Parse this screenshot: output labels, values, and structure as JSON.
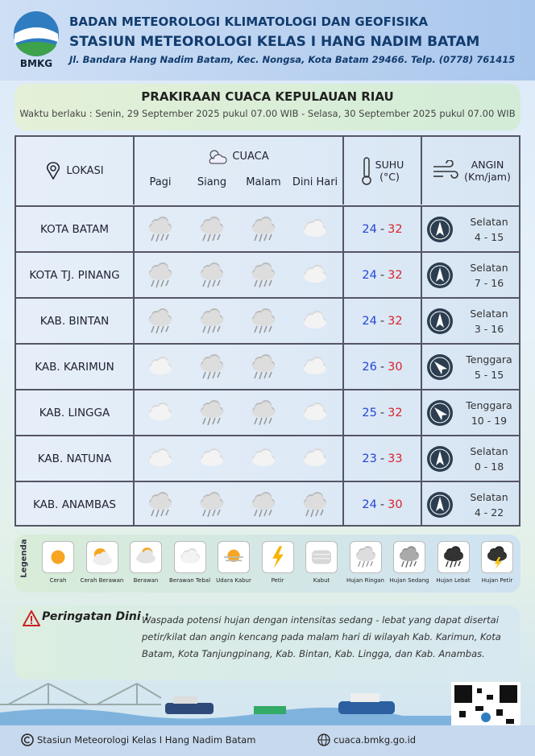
{
  "header": {
    "logo_text": "BMKG",
    "agency": "BADAN METEOROLOGI KLIMATOLOGI DAN GEOFISIKA",
    "station": "STASIUN METEOROLOGI KELAS I HANG NADIM BATAM",
    "address": "Jl. Bandara Hang Nadim Batam, Kec. Nongsa, Kota Batam 29466. Telp. (0778) 761415"
  },
  "title": "PRAKIRAAN CUACA KEPULAUAN RIAU",
  "validity": "Waktu berlaku : Senin, 29 September 2025 pukul 07.00 WIB - Selasa, 30 September 2025 pukul 07.00 WIB",
  "table": {
    "headers": {
      "location": "LOKASI",
      "weather": "CUACA",
      "periods": [
        "Pagi",
        "Siang",
        "Malam",
        "Dini Hari"
      ],
      "temperature": "SUHU",
      "temperature_unit": "(°C)",
      "wind": "ANGIN",
      "wind_unit": "(Km/jam)"
    },
    "temperature_separator": "-",
    "rows": [
      {
        "location": "KOTA BATAM",
        "weather": [
          "Hujan Ringan",
          "Hujan Ringan",
          "Hujan Ringan",
          "Berawan Tebal"
        ],
        "temp_min": 24,
        "temp_max": 32,
        "wind_direction": "Selatan",
        "wind_speed": "4 - 15"
      },
      {
        "location": "KOTA TJ. PINANG",
        "weather": [
          "Hujan Ringan",
          "Hujan Ringan",
          "Hujan Ringan",
          "Berawan Tebal"
        ],
        "temp_min": 24,
        "temp_max": 32,
        "wind_direction": "Selatan",
        "wind_speed": "7 - 16"
      },
      {
        "location": "KAB. BINTAN",
        "weather": [
          "Hujan Ringan",
          "Hujan Ringan",
          "Hujan Ringan",
          "Berawan Tebal"
        ],
        "temp_min": 24,
        "temp_max": 32,
        "wind_direction": "Selatan",
        "wind_speed": "3 - 16"
      },
      {
        "location": "KAB. KARIMUN",
        "weather": [
          "Berawan Tebal",
          "Hujan Ringan",
          "Hujan Ringan",
          "Berawan Tebal"
        ],
        "temp_min": 26,
        "temp_max": 30,
        "wind_direction": "Tenggara",
        "wind_speed": "5 - 15"
      },
      {
        "location": "KAB. LINGGA",
        "weather": [
          "Berawan Tebal",
          "Hujan Ringan",
          "Hujan Ringan",
          "Berawan Tebal"
        ],
        "temp_min": 25,
        "temp_max": 32,
        "wind_direction": "Tenggara",
        "wind_speed": "10 - 19"
      },
      {
        "location": "KAB. NATUNA",
        "weather": [
          "Berawan Tebal",
          "Berawan Tebal",
          "Berawan Tebal",
          "Berawan Tebal"
        ],
        "temp_min": 23,
        "temp_max": 33,
        "wind_direction": "Selatan",
        "wind_speed": "0 - 18"
      },
      {
        "location": "KAB. ANAMBAS",
        "weather": [
          "Hujan Ringan",
          "Hujan Ringan",
          "Hujan Ringan",
          "Hujan Ringan"
        ],
        "temp_min": 24,
        "temp_max": 30,
        "wind_direction": "Selatan",
        "wind_speed": "4 - 22"
      }
    ]
  },
  "legend": {
    "title": "Legenda",
    "items": [
      "Cerah",
      "Cerah Berawan",
      "Berawan",
      "Berawan Tebal",
      "Udara Kabur",
      "Petir",
      "Kabut",
      "Hujan Ringan",
      "Hujan Sedang",
      "Hujan Lebat",
      "Hujan Petir"
    ]
  },
  "warning": {
    "title": "Peringatan Dini :",
    "text": "Waspada potensi hujan dengan intensitas sedang - lebat yang dapat disertai petir/kilat dan angin kencang pada malam hari di wilayah Kab. Karimun, Kota Batam, Kota Tanjungpinang, Kab. Bintan, Kab. Lingga, dan Kab. Anambas."
  },
  "footer": {
    "station": "Stasiun Meteorologi Kelas I Hang Nadim Batam",
    "website": "cuaca.bmkg.go.id"
  }
}
